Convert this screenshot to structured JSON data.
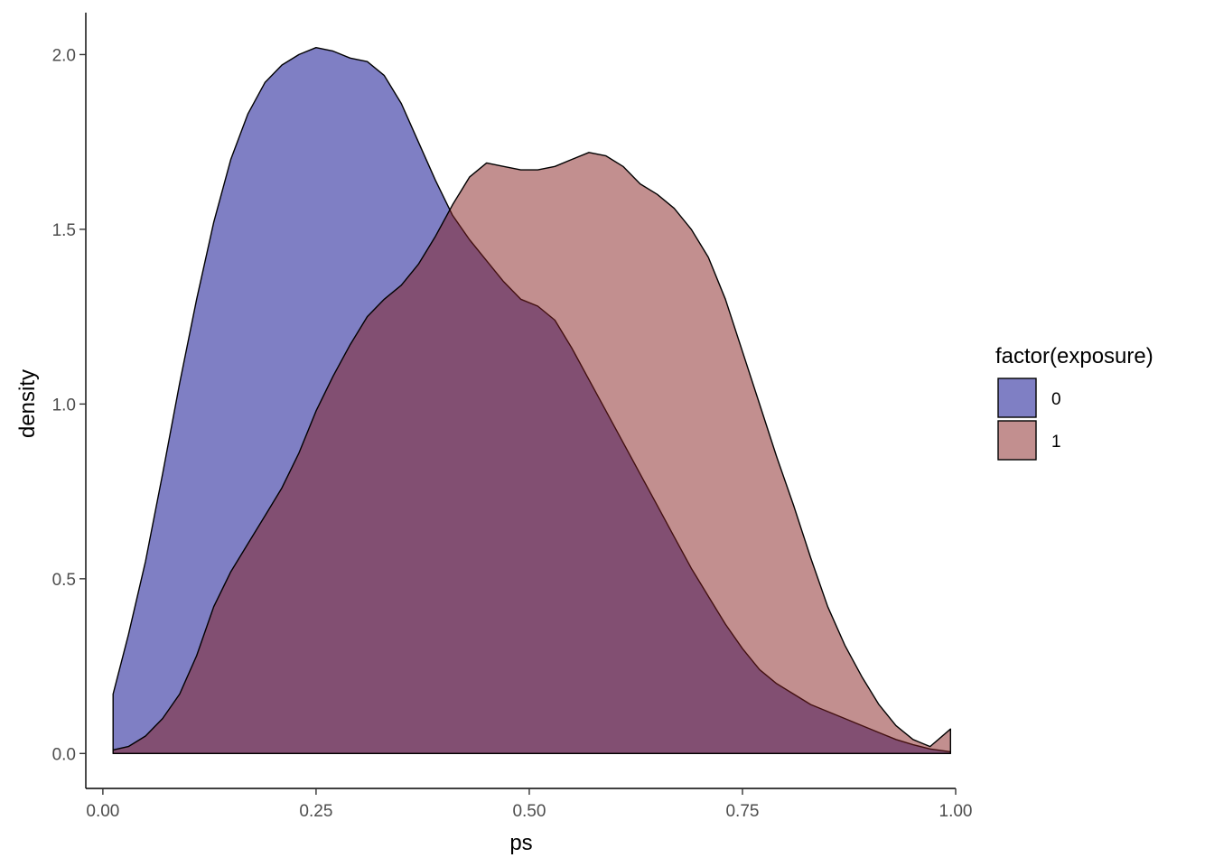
{
  "chart_data": {
    "type": "area",
    "title": "",
    "xlabel": "ps",
    "ylabel": "density",
    "xlim": [
      -0.02,
      1.0
    ],
    "ylim": [
      -0.1,
      2.12
    ],
    "x_ticks": [
      "0.00",
      "0.25",
      "0.50",
      "0.75",
      "1.00"
    ],
    "x_tick_values": [
      0.0,
      0.25,
      0.5,
      0.75,
      1.0
    ],
    "y_ticks": [
      "0.0",
      "0.5",
      "1.0",
      "1.5",
      "2.0"
    ],
    "y_tick_values": [
      0.0,
      0.5,
      1.0,
      1.5,
      2.0
    ],
    "grid": false,
    "legend": {
      "title": "factor(exposure)",
      "placement": "right"
    },
    "series": [
      {
        "name": "0",
        "color": "#7f7fc4",
        "x": [
          0.012,
          0.03,
          0.05,
          0.07,
          0.09,
          0.11,
          0.13,
          0.15,
          0.17,
          0.19,
          0.21,
          0.23,
          0.25,
          0.27,
          0.29,
          0.31,
          0.33,
          0.35,
          0.37,
          0.39,
          0.41,
          0.43,
          0.45,
          0.47,
          0.49,
          0.51,
          0.53,
          0.55,
          0.57,
          0.59,
          0.61,
          0.63,
          0.65,
          0.67,
          0.69,
          0.71,
          0.73,
          0.75,
          0.77,
          0.79,
          0.81,
          0.83,
          0.85,
          0.87,
          0.89,
          0.91,
          0.93,
          0.95,
          0.97,
          0.994
        ],
        "y": [
          0.17,
          0.34,
          0.55,
          0.8,
          1.06,
          1.3,
          1.52,
          1.7,
          1.83,
          1.92,
          1.97,
          2.0,
          2.02,
          2.01,
          1.99,
          1.98,
          1.94,
          1.86,
          1.75,
          1.64,
          1.54,
          1.47,
          1.41,
          1.35,
          1.3,
          1.28,
          1.24,
          1.16,
          1.07,
          0.98,
          0.89,
          0.8,
          0.71,
          0.62,
          0.53,
          0.45,
          0.37,
          0.3,
          0.24,
          0.2,
          0.17,
          0.14,
          0.12,
          0.1,
          0.08,
          0.06,
          0.04,
          0.025,
          0.013,
          0.005
        ]
      },
      {
        "name": "1",
        "color": "#851f1f",
        "x": [
          0.012,
          0.03,
          0.05,
          0.07,
          0.09,
          0.11,
          0.13,
          0.15,
          0.17,
          0.19,
          0.21,
          0.23,
          0.25,
          0.27,
          0.29,
          0.31,
          0.33,
          0.35,
          0.37,
          0.39,
          0.41,
          0.43,
          0.45,
          0.47,
          0.49,
          0.51,
          0.53,
          0.55,
          0.57,
          0.59,
          0.61,
          0.63,
          0.65,
          0.67,
          0.69,
          0.71,
          0.73,
          0.75,
          0.77,
          0.79,
          0.81,
          0.83,
          0.85,
          0.87,
          0.89,
          0.91,
          0.93,
          0.95,
          0.97,
          0.994
        ],
        "y": [
          0.01,
          0.02,
          0.05,
          0.1,
          0.17,
          0.28,
          0.42,
          0.52,
          0.6,
          0.68,
          0.76,
          0.86,
          0.98,
          1.08,
          1.17,
          1.25,
          1.3,
          1.34,
          1.4,
          1.48,
          1.57,
          1.65,
          1.69,
          1.68,
          1.67,
          1.67,
          1.68,
          1.7,
          1.72,
          1.71,
          1.68,
          1.63,
          1.6,
          1.56,
          1.5,
          1.42,
          1.3,
          1.15,
          1.0,
          0.85,
          0.71,
          0.56,
          0.42,
          0.31,
          0.22,
          0.14,
          0.08,
          0.04,
          0.02,
          0.07
        ]
      }
    ]
  }
}
